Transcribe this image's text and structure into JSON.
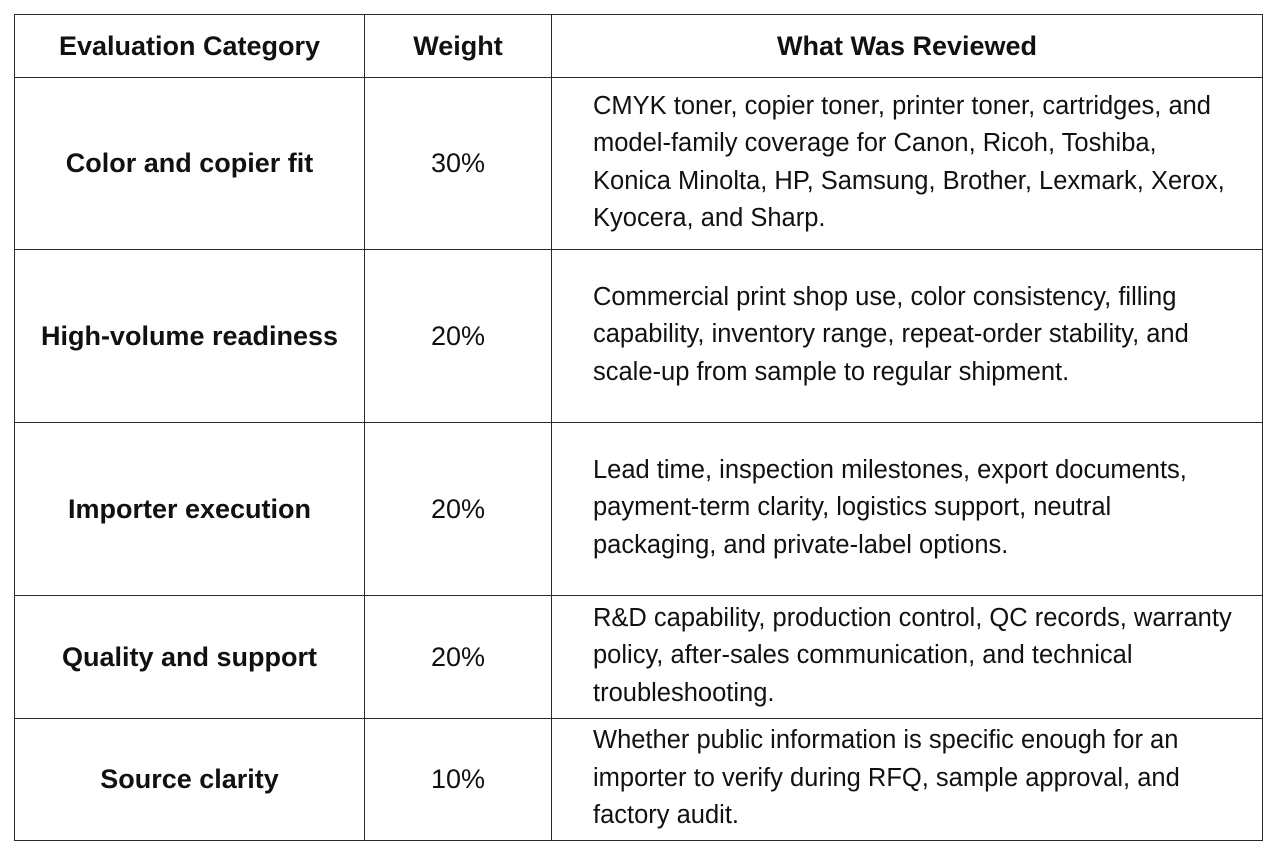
{
  "table": {
    "headers": [
      "Evaluation Category",
      "Weight",
      "What Was Reviewed"
    ],
    "rows": [
      {
        "category": "Color and copier fit",
        "weight": "30%",
        "reviewed": "CMYK toner, copier toner, printer toner, cartridges, and model-family coverage for Canon, Ricoh, Toshiba, Konica Minolta, HP, Samsung, Brother, Lexmark, Xerox, Kyocera, and Sharp."
      },
      {
        "category": "High-volume readiness",
        "weight": "20%",
        "reviewed": "Commercial print shop use, color consistency, filling capability, inventory range, repeat-order stability, and scale-up from sample to regular shipment."
      },
      {
        "category": "Importer execution",
        "weight": "20%",
        "reviewed": "Lead time, inspection milestones, export documents, payment-term clarity, logistics support, neutral packaging, and private-label options."
      },
      {
        "category": "Quality and support",
        "weight": "20%",
        "reviewed": "R&D capability, production control, QC records, warranty policy, after-sales communication, and technical troubleshooting."
      },
      {
        "category": "Source clarity",
        "weight": "10%",
        "reviewed": "Whether public information is specific enough for an importer to verify during RFQ, sample approval, and factory audit."
      }
    ]
  }
}
